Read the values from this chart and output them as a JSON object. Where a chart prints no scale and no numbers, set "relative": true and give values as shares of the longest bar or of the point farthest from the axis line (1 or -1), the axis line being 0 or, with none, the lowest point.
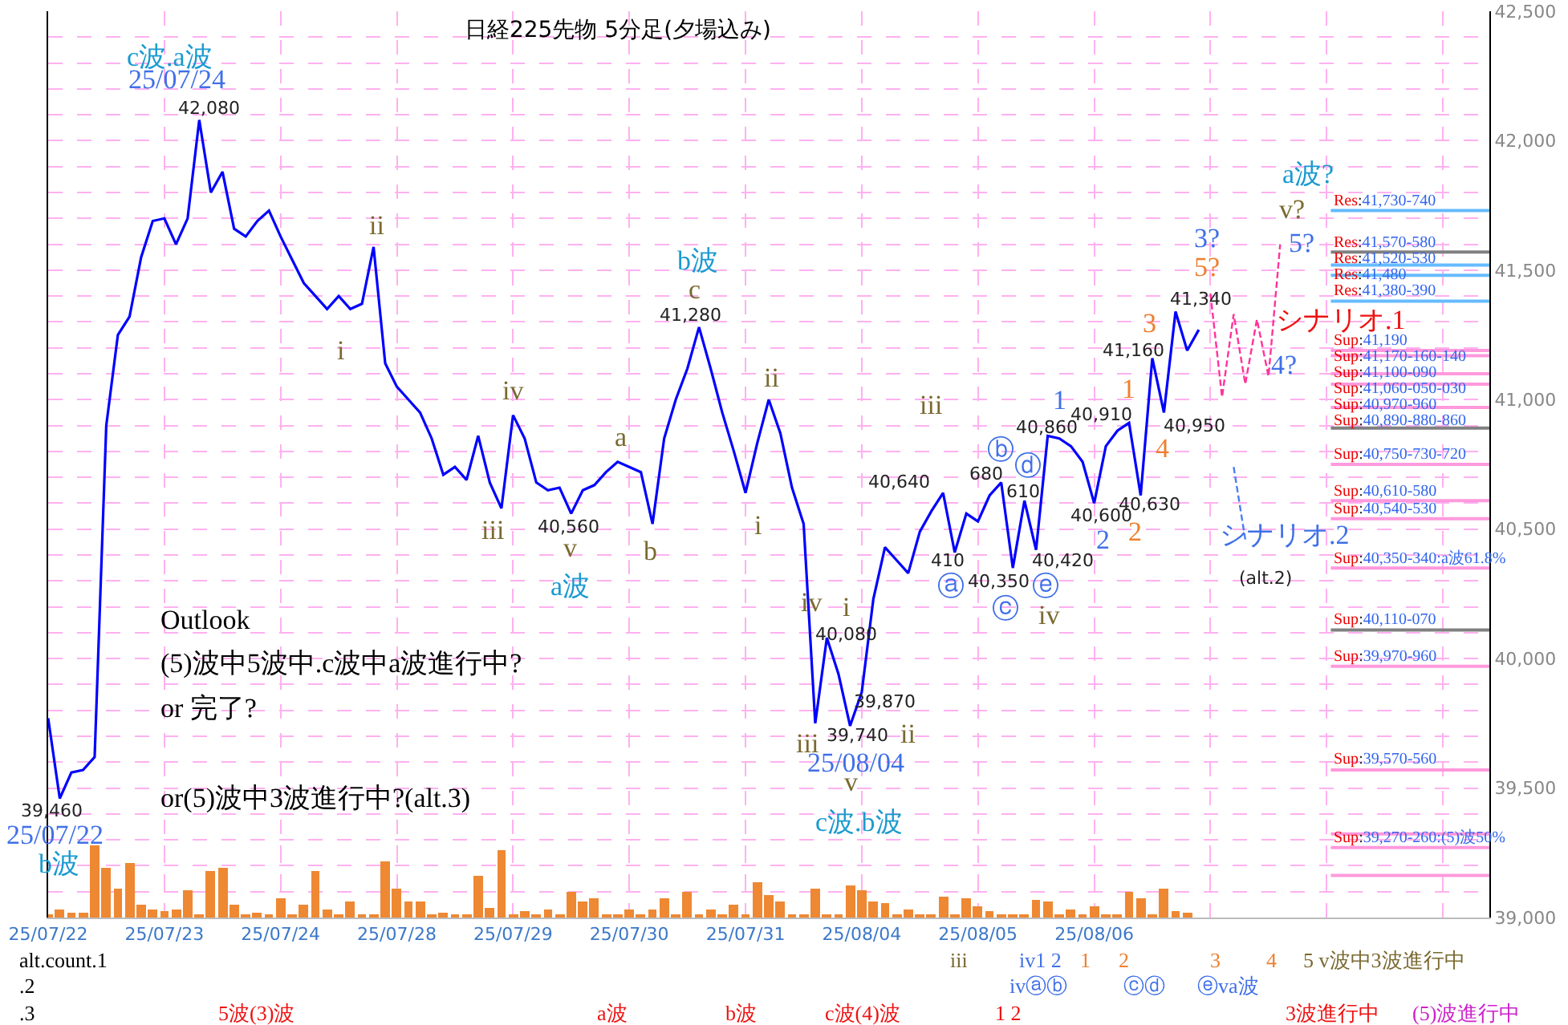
{
  "chart_data": [
    {
      "type": "line",
      "title": "日経225先物 5分足(夕場込み)",
      "marker": "none",
      "grid": true,
      "categories": [
        "25/07/22",
        null,
        null,
        null,
        null,
        null,
        null,
        null,
        null,
        null,
        "25/07/23",
        null,
        null,
        null,
        null,
        null,
        null,
        null,
        null,
        null,
        "25/07/24",
        null,
        null,
        null,
        null,
        null,
        null,
        null,
        null,
        null,
        "25/07/28",
        null,
        null,
        null,
        null,
        null,
        null,
        null,
        null,
        null,
        "25/07/29",
        null,
        null,
        null,
        null,
        null,
        null,
        null,
        null,
        null,
        "25/07/30",
        null,
        null,
        null,
        null,
        null,
        null,
        null,
        null,
        null,
        "25/07/31",
        null,
        null,
        null,
        null,
        null,
        null,
        null,
        null,
        null,
        "25/08/04",
        null,
        null,
        null,
        null,
        null,
        null,
        null,
        null,
        null,
        "25/08/05",
        null,
        null,
        null,
        null,
        null,
        null,
        null,
        null,
        null,
        "25/08/06",
        null,
        null,
        null,
        null,
        null,
        null,
        null,
        null,
        null,
        null,
        null,
        null,
        null,
        null,
        null,
        null,
        null,
        null,
        null,
        null,
        null,
        null,
        null,
        null,
        null,
        null,
        null,
        null,
        null,
        null,
        null,
        null,
        null
      ],
      "ylim": [
        39000,
        42500
      ],
      "yticks": [
        {
          "value": 39000,
          "label": "39,000"
        },
        {
          "value": 39100,
          "label": null
        },
        {
          "value": 39200,
          "label": null
        },
        {
          "value": 39300,
          "label": null
        },
        {
          "value": 39400,
          "label": null
        },
        {
          "value": 39500,
          "label": "39,500"
        },
        {
          "value": 39600,
          "label": null
        },
        {
          "value": 39700,
          "label": null
        },
        {
          "value": 39800,
          "label": null
        },
        {
          "value": 39900,
          "label": null
        },
        {
          "value": 40000,
          "label": "40,000"
        },
        {
          "value": 40100,
          "label": null
        },
        {
          "value": 40200,
          "label": null
        },
        {
          "value": 40300,
          "label": null
        },
        {
          "value": 40400,
          "label": null
        },
        {
          "value": 40500,
          "label": "40,500"
        },
        {
          "value": 40600,
          "label": null
        },
        {
          "value": 40700,
          "label": null
        },
        {
          "value": 40800,
          "label": null
        },
        {
          "value": 40900,
          "label": null
        },
        {
          "value": 41000,
          "label": "41,000"
        },
        {
          "value": 41100,
          "label": null
        },
        {
          "value": 41200,
          "label": null
        },
        {
          "value": 41300,
          "label": null
        },
        {
          "value": 41400,
          "label": null
        },
        {
          "value": 41500,
          "label": "41,500"
        },
        {
          "value": 41600,
          "label": null
        },
        {
          "value": 41700,
          "label": null
        },
        {
          "value": 41800,
          "label": null
        },
        {
          "value": 41900,
          "label": null
        },
        {
          "value": 42000,
          "label": "42,000"
        },
        {
          "value": 42100,
          "label": null
        },
        {
          "value": 42200,
          "label": null
        },
        {
          "value": 42300,
          "label": null
        },
        {
          "value": 42400,
          "label": null
        },
        {
          "value": 42500,
          "label": "42,500"
        }
      ],
      "series": [
        {
          "color": "#0000ff",
          "line_style": "solid",
          "values": [
            39770,
            39460,
            39560,
            39570,
            39620,
            40900,
            41250,
            41320,
            41550,
            41690,
            41700,
            41600,
            41700,
            42080,
            41800,
            41880,
            41660,
            41630,
            41690,
            41730,
            41630,
            41540,
            41450,
            41400,
            41350,
            41400,
            41350,
            41370,
            41590,
            41140,
            41050,
            41000,
            40950,
            40850,
            40710,
            40740,
            40690,
            40860,
            40680,
            40580,
            40940,
            40850,
            40680,
            40650,
            40660,
            40560,
            40650,
            40670,
            40720,
            40760,
            40740,
            40720,
            40520,
            40850,
            41000,
            41120,
            41280,
            41120,
            40950,
            40800,
            40640,
            40830,
            41000,
            40870,
            40660,
            40520,
            39750,
            40080,
            39940,
            39740,
            39870,
            40230,
            40430,
            40380,
            40330,
            40490,
            40570,
            40640,
            40410,
            40560,
            40530,
            40630,
            40680,
            40350,
            40610,
            40420,
            40860,
            40850,
            40820,
            40760,
            40600,
            40820,
            40880,
            40910,
            40630,
            41160,
            40950,
            41340,
            41190,
            41270,
            null,
            null,
            null,
            null,
            null,
            null,
            null,
            null,
            null,
            null,
            null,
            null,
            null,
            null,
            null,
            null,
            null,
            null,
            null,
            null,
            null,
            null,
            null,
            null
          ]
        },
        {
          "color": "#ff3399",
          "line_style": "dashed",
          "values": [
            null,
            null,
            null,
            null,
            null,
            null,
            null,
            null,
            null,
            null,
            null,
            null,
            null,
            null,
            null,
            null,
            null,
            null,
            null,
            null,
            null,
            null,
            null,
            null,
            null,
            null,
            null,
            null,
            null,
            null,
            null,
            null,
            null,
            null,
            null,
            null,
            null,
            null,
            null,
            null,
            null,
            null,
            null,
            null,
            null,
            null,
            null,
            null,
            null,
            null,
            null,
            null,
            null,
            null,
            null,
            null,
            null,
            null,
            null,
            null,
            null,
            null,
            null,
            null,
            null,
            null,
            null,
            null,
            null,
            null,
            null,
            null,
            null,
            null,
            null,
            null,
            null,
            null,
            null,
            null,
            null,
            null,
            null,
            null,
            null,
            null,
            null,
            null,
            null,
            null,
            null,
            null,
            null,
            null,
            null,
            null,
            null,
            null,
            null,
            null,
            41410,
            41010,
            41330,
            41060,
            41310,
            41090,
            41600,
            null,
            null,
            null,
            null,
            null,
            null,
            null,
            null,
            null,
            null,
            null,
            null,
            null,
            null,
            null,
            null,
            null
          ]
        },
        {
          "color": "#4a7ff0",
          "line_style": "dashed",
          "values": [
            null,
            null,
            null,
            null,
            null,
            null,
            null,
            null,
            null,
            null,
            null,
            null,
            null,
            null,
            null,
            null,
            null,
            null,
            null,
            null,
            null,
            null,
            null,
            null,
            null,
            null,
            null,
            null,
            null,
            null,
            null,
            null,
            null,
            null,
            null,
            null,
            null,
            null,
            null,
            null,
            null,
            null,
            null,
            null,
            null,
            null,
            null,
            null,
            null,
            null,
            null,
            null,
            null,
            null,
            null,
            null,
            null,
            null,
            null,
            null,
            null,
            null,
            null,
            null,
            null,
            null,
            null,
            null,
            null,
            null,
            null,
            null,
            null,
            null,
            null,
            null,
            null,
            null,
            null,
            null,
            null,
            null,
            null,
            null,
            null,
            null,
            null,
            null,
            null,
            null,
            null,
            null,
            null,
            null,
            null,
            null,
            null,
            null,
            null,
            null,
            null,
            null,
            40740,
            40460,
            null,
            null,
            null,
            null,
            null,
            null,
            null,
            null,
            null,
            null,
            null,
            null,
            null,
            null,
            null,
            null,
            null,
            null,
            null,
            null
          ]
        }
      ],
      "ref_lines": [
        {
          "axis": "y",
          "value": 41730,
          "label": "Res:41,730-740",
          "color": "#66bbff"
        },
        {
          "axis": "y",
          "value": 41570,
          "label": "Res:41,570-580",
          "color": "#808080"
        },
        {
          "axis": "y",
          "value": 41520,
          "label": "Res:41,520-530",
          "color": "#66bbff"
        },
        {
          "axis": "y",
          "value": 41480,
          "label": "Res:41,480",
          "color": "#66bbff"
        },
        {
          "axis": "y",
          "value": 41380,
          "label": "Res:41,380-390",
          "color": "#66bbff"
        },
        {
          "axis": "y",
          "value": 41190,
          "label": "Sup:41,190",
          "color": "#ff99dd"
        },
        {
          "axis": "y",
          "value": 41170,
          "label": "Sup:41,170-160-140",
          "color": "#ff99dd"
        },
        {
          "axis": "y",
          "value": 41100,
          "label": "Sup:41,100-090",
          "color": "#ff99dd"
        },
        {
          "axis": "y",
          "value": 41060,
          "label": "Sup:41,060-050-030",
          "color": "#ff99dd"
        },
        {
          "axis": "y",
          "value": 40970,
          "label": "Sup:40,970-960",
          "color": "#ff99dd"
        },
        {
          "axis": "y",
          "value": 40890,
          "label": "Sup:40,890-880-860",
          "color": "#808080"
        },
        {
          "axis": "y",
          "value": 40750,
          "label": "Sup:40,750-730-720",
          "color": "#ff99dd"
        },
        {
          "axis": "y",
          "value": 40610,
          "label": "Sup:40,610-580",
          "color": "#ff99dd"
        },
        {
          "axis": "y",
          "value": 40540,
          "label": "Sup:40,540-530",
          "color": "#ff99dd"
        },
        {
          "axis": "y",
          "value": 40350,
          "label": "Sup:40,350-340:a波61.8%",
          "color": "#ff99dd"
        },
        {
          "axis": "y",
          "value": 40110,
          "label": "Sup:40,110-070",
          "color": "#808080"
        },
        {
          "axis": "y",
          "value": 39970,
          "label": "Sup:39,970-960",
          "color": "#ff99dd"
        },
        {
          "axis": "y",
          "value": 39570,
          "label": "Sup:39,570-560",
          "color": "#ff99dd"
        },
        {
          "axis": "y",
          "value": 39323,
          "color": "#ff99dd"
        },
        {
          "axis": "y",
          "value": 39270,
          "label": "Sup:39,270-260:(5)波50%",
          "color": "#ff99dd"
        },
        {
          "axis": "y",
          "value": 39163,
          "color": "#ff99dd"
        }
      ],
      "annotations": [
        "c波.a波",
        "25/07/24",
        "42,080",
        "ii",
        "i",
        "iv",
        "iii",
        "40,560",
        "v",
        "a波",
        "a",
        "b",
        "b波",
        "c",
        "41,280",
        "ii",
        "i",
        "iv",
        "i",
        "40,080",
        "iii",
        "39,870",
        "39,740",
        "ii",
        "25/08/04",
        "v",
        "c波.b波",
        "iii",
        "40,640",
        "ⓑ",
        "680",
        "ⓓ",
        "610",
        "410",
        "ⓐ",
        "40,350",
        "ⓒ",
        "40,420",
        "ⓔ",
        "iv",
        "40,860",
        "1",
        "40,910",
        "40,600",
        "2",
        "40,630",
        "2",
        "1",
        "41,160",
        "3",
        "41,340",
        "40,950",
        "4",
        "3?",
        "5?",
        "a波?",
        "v?",
        "5?",
        "4?",
        "シナリオ.1",
        "シナリオ.2",
        "(alt.2)",
        "39,460",
        "25/07/22",
        "b波",
        "Outlook",
        "(5)波中5波中.c波中a波進行中?",
        "or 完了?",
        "or(5)波中3波進行中?(alt.3)",
        "alt.count.1",
        ".2",
        ".3",
        "iii",
        "iv1 2",
        "1",
        "2",
        "3",
        "4",
        "5 v波中3波進行中",
        "ivⓐⓑ",
        "ⓒⓓ",
        "ⓔva波",
        "5波(3)波",
        "a波",
        "b波",
        "c波(4)波",
        "1 2",
        "3波進行中",
        "(5)波進行中"
      ]
    },
    {
      "type": "bar",
      "relative": true,
      "grid": "x",
      "tick_labels": false,
      "color": "#ee8833",
      "categories": [
        null,
        null,
        null,
        null,
        null,
        null,
        null,
        null,
        null,
        null,
        null,
        null,
        null,
        null,
        null,
        null,
        null,
        null,
        null,
        null,
        null,
        null,
        null,
        null,
        null,
        null,
        null,
        null,
        null,
        null,
        null,
        null,
        null,
        null,
        null,
        null,
        null,
        null,
        null,
        null,
        null,
        null,
        null,
        null,
        null,
        null,
        null,
        null,
        null,
        null,
        null,
        null,
        null,
        null,
        null,
        null,
        null,
        null,
        null,
        null,
        null,
        null,
        null,
        null,
        null,
        null,
        null,
        null,
        null,
        null,
        null,
        null,
        null,
        null,
        null,
        null,
        null,
        null,
        null,
        null,
        null,
        null,
        null,
        null,
        null,
        null,
        null,
        null,
        null,
        null,
        null,
        null,
        null,
        null,
        null,
        null,
        null,
        null,
        null,
        null,
        null,
        null,
        null,
        null,
        null,
        null,
        null,
        null,
        null,
        null,
        null,
        null,
        null,
        null,
        null,
        null,
        null,
        null,
        null,
        null,
        null,
        null,
        null,
        null
      ],
      "values": [
        0.05,
        0.11,
        0.07,
        0.07,
        1.0,
        0.68,
        0.41,
        0.75,
        0.18,
        0.11,
        0.09,
        0.11,
        0.39,
        0.05,
        0.64,
        0.68,
        0.18,
        0.05,
        0.07,
        0.05,
        0.27,
        0.05,
        0.18,
        0.64,
        0.11,
        0.05,
        0.23,
        0.05,
        0.05,
        0.77,
        0.41,
        0.23,
        0.23,
        0.05,
        0.07,
        0.05,
        0.05,
        0.57,
        0.14,
        0.93,
        0.05,
        0.09,
        0.05,
        0.11,
        0.05,
        0.36,
        0.23,
        0.27,
        0.05,
        0.05,
        0.11,
        0.05,
        0.11,
        0.27,
        0.05,
        0.36,
        0.05,
        0.11,
        0.05,
        0.18,
        0.05,
        0.5,
        0.32,
        0.23,
        0.05,
        0.05,
        0.41,
        0.05,
        0.05,
        0.45,
        0.39,
        0.23,
        0.2,
        0.05,
        0.11,
        0.05,
        0.05,
        0.3,
        0.05,
        0.27,
        0.16,
        0.09,
        0.05,
        0.05,
        0.05,
        0.25,
        0.23,
        0.05,
        0.11,
        0.05,
        0.16,
        0.05,
        0.05,
        0.36,
        0.27,
        0.05,
        0.41,
        0.09,
        0.07,
        null,
        null,
        null,
        null,
        null,
        null,
        null,
        null,
        null,
        null,
        null,
        null,
        null,
        null,
        null,
        null,
        null,
        null,
        null,
        null,
        null,
        null,
        null,
        null,
        null
      ]
    }
  ]
}
